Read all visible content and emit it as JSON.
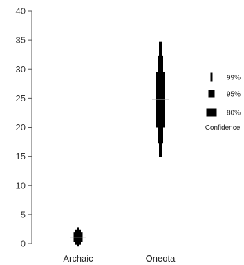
{
  "chart_data": {
    "type": "interval",
    "title": "",
    "xlabel": "",
    "ylabel": "",
    "ylim": [
      0,
      40
    ],
    "yticks": [
      0,
      5,
      10,
      15,
      20,
      25,
      30,
      35,
      40
    ],
    "grid": false,
    "categories": [
      "Archaic",
      "Oneota"
    ],
    "series": [
      {
        "category": "Archaic",
        "median": 1.1,
        "ci80": [
          0.3,
          2.0
        ],
        "ci95": [
          -0.2,
          2.4
        ],
        "ci99": [
          -0.5,
          2.8
        ]
      },
      {
        "category": "Oneota",
        "median": 24.8,
        "ci80": [
          20.0,
          29.5
        ],
        "ci95": [
          17.3,
          32.3
        ],
        "ci99": [
          14.9,
          34.7
        ]
      }
    ],
    "legend": {
      "placement": "right",
      "items": [
        "99%",
        "95%",
        "80%"
      ],
      "title": "Confidence"
    },
    "colors": {
      "interval": "#000000",
      "median": "#aaaaaa",
      "axis": "#555555"
    }
  }
}
